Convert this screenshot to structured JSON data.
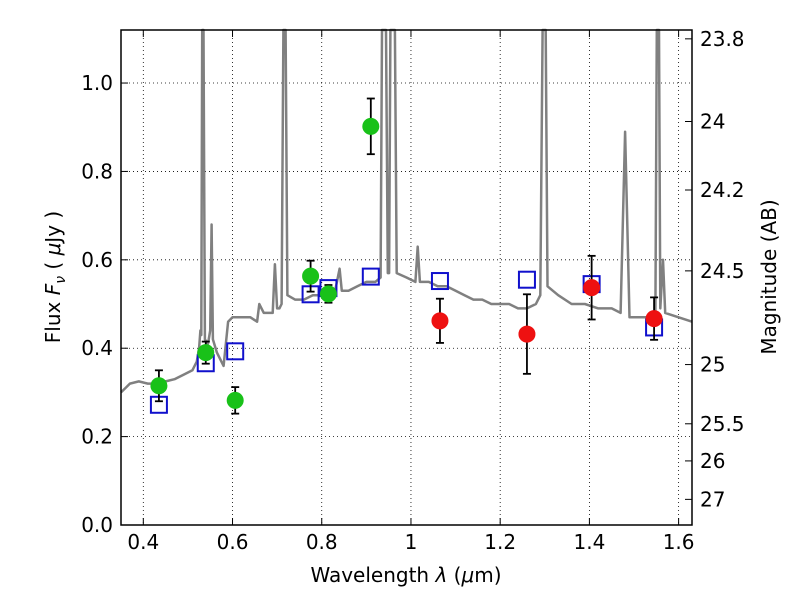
{
  "chart_data": {
    "type": "scatter",
    "xlabel_parts": [
      "Wavelength  ",
      "λ",
      " (",
      "μ",
      "m)"
    ],
    "ylabel_parts": [
      "Flux  ",
      "F",
      "ν",
      "  ( ",
      "μ",
      "Jy )"
    ],
    "right_ylabel": "Magnitude (AB)",
    "xlim": [
      0.35,
      1.63
    ],
    "ylim": [
      0.0,
      1.12
    ],
    "grid": true,
    "x_ticks": [
      {
        "value": 0.4,
        "label": "0.4"
      },
      {
        "value": 0.6,
        "label": "0.6"
      },
      {
        "value": 0.8,
        "label": "0.8"
      },
      {
        "value": 1.0,
        "label": "1"
      },
      {
        "value": 1.2,
        "label": "1.2"
      },
      {
        "value": 1.4,
        "label": "1.4"
      },
      {
        "value": 1.6,
        "label": "1.6"
      }
    ],
    "y_ticks": [
      {
        "value": 0.0,
        "label": "0.0"
      },
      {
        "value": 0.2,
        "label": "0.2"
      },
      {
        "value": 0.4,
        "label": "0.4"
      },
      {
        "value": 0.6,
        "label": "0.6"
      },
      {
        "value": 0.8,
        "label": "0.8"
      },
      {
        "value": 1.0,
        "label": "1.0"
      }
    ],
    "right_ticks": [
      {
        "flux": 1.1,
        "label": "23.8"
      },
      {
        "flux": 0.913,
        "label": "24"
      },
      {
        "flux": 0.758,
        "label": "24.2"
      },
      {
        "flux": 0.575,
        "label": "24.5"
      },
      {
        "flux": 0.363,
        "label": "25"
      },
      {
        "flux": 0.229,
        "label": "25.5"
      },
      {
        "flux": 0.145,
        "label": "26"
      },
      {
        "flux": 0.058,
        "label": "27"
      }
    ],
    "colors": {
      "spectrum": "#808080",
      "green": "#19c119",
      "red": "#ee1111",
      "model": "#1010cc",
      "error": "#000000"
    },
    "spectrum": [
      [
        0.35,
        0.3
      ],
      [
        0.36,
        0.31
      ],
      [
        0.37,
        0.32
      ],
      [
        0.39,
        0.325
      ],
      [
        0.41,
        0.32
      ],
      [
        0.43,
        0.32
      ],
      [
        0.45,
        0.325
      ],
      [
        0.47,
        0.33
      ],
      [
        0.49,
        0.34
      ],
      [
        0.51,
        0.35
      ],
      [
        0.52,
        0.37
      ],
      [
        0.525,
        0.4
      ],
      [
        0.528,
        0.44
      ],
      [
        0.53,
        0.43
      ],
      [
        0.532,
        1.12
      ],
      [
        0.535,
        1.12
      ],
      [
        0.538,
        0.42
      ],
      [
        0.545,
        0.41
      ],
      [
        0.55,
        0.44
      ],
      [
        0.553,
        0.68
      ],
      [
        0.556,
        0.42
      ],
      [
        0.565,
        0.39
      ],
      [
        0.58,
        0.36
      ],
      [
        0.59,
        0.46
      ],
      [
        0.6,
        0.47
      ],
      [
        0.62,
        0.47
      ],
      [
        0.64,
        0.47
      ],
      [
        0.655,
        0.46
      ],
      [
        0.66,
        0.5
      ],
      [
        0.665,
        0.49
      ],
      [
        0.67,
        0.48
      ],
      [
        0.69,
        0.48
      ],
      [
        0.695,
        0.59
      ],
      [
        0.7,
        0.49
      ],
      [
        0.705,
        0.49
      ],
      [
        0.71,
        0.5
      ],
      [
        0.714,
        1.12
      ],
      [
        0.719,
        1.12
      ],
      [
        0.723,
        0.52
      ],
      [
        0.74,
        0.51
      ],
      [
        0.76,
        0.51
      ],
      [
        0.78,
        0.52
      ],
      [
        0.8,
        0.52
      ],
      [
        0.83,
        0.53
      ],
      [
        0.84,
        0.58
      ],
      [
        0.845,
        0.53
      ],
      [
        0.86,
        0.53
      ],
      [
        0.88,
        0.54
      ],
      [
        0.9,
        0.55
      ],
      [
        0.92,
        0.55
      ],
      [
        0.932,
        0.56
      ],
      [
        0.935,
        1.12
      ],
      [
        0.944,
        1.12
      ],
      [
        0.948,
        0.57
      ],
      [
        0.951,
        0.57
      ],
      [
        0.954,
        1.12
      ],
      [
        0.964,
        1.12
      ],
      [
        0.968,
        0.57
      ],
      [
        0.99,
        0.56
      ],
      [
        1.01,
        0.55
      ],
      [
        1.015,
        0.63
      ],
      [
        1.02,
        0.55
      ],
      [
        1.04,
        0.55
      ],
      [
        1.06,
        0.54
      ],
      [
        1.08,
        0.54
      ],
      [
        1.1,
        0.53
      ],
      [
        1.12,
        0.52
      ],
      [
        1.14,
        0.51
      ],
      [
        1.16,
        0.51
      ],
      [
        1.18,
        0.5
      ],
      [
        1.2,
        0.5
      ],
      [
        1.22,
        0.5
      ],
      [
        1.24,
        0.49
      ],
      [
        1.26,
        0.49
      ],
      [
        1.28,
        0.5
      ],
      [
        1.29,
        0.52
      ],
      [
        1.295,
        1.12
      ],
      [
        1.302,
        1.12
      ],
      [
        1.306,
        0.54
      ],
      [
        1.33,
        0.52
      ],
      [
        1.36,
        0.5
      ],
      [
        1.39,
        0.5
      ],
      [
        1.42,
        0.49
      ],
      [
        1.45,
        0.49
      ],
      [
        1.47,
        0.48
      ],
      [
        1.48,
        0.89
      ],
      [
        1.49,
        0.47
      ],
      [
        1.51,
        0.47
      ],
      [
        1.53,
        0.47
      ],
      [
        1.548,
        0.48
      ],
      [
        1.551,
        1.12
      ],
      [
        1.556,
        1.12
      ],
      [
        1.559,
        0.49
      ],
      [
        1.565,
        0.6
      ],
      [
        1.57,
        0.48
      ],
      [
        1.6,
        0.47
      ],
      [
        1.63,
        0.46
      ]
    ],
    "green_points": [
      {
        "x": 0.435,
        "y": 0.315,
        "err": 0.035
      },
      {
        "x": 0.54,
        "y": 0.39,
        "err": 0.025
      },
      {
        "x": 0.606,
        "y": 0.282,
        "err": 0.03
      },
      {
        "x": 0.775,
        "y": 0.563,
        "err": 0.035
      },
      {
        "x": 0.815,
        "y": 0.523,
        "err": 0.02
      },
      {
        "x": 0.91,
        "y": 0.902,
        "err": 0.063
      }
    ],
    "red_points": [
      {
        "x": 1.065,
        "y": 0.462,
        "err": 0.05
      },
      {
        "x": 1.26,
        "y": 0.432,
        "err": 0.09
      },
      {
        "x": 1.405,
        "y": 0.537,
        "err": 0.072
      },
      {
        "x": 1.545,
        "y": 0.467,
        "err": 0.048
      }
    ],
    "model_points": [
      {
        "x": 0.435,
        "y": 0.272
      },
      {
        "x": 0.54,
        "y": 0.366
      },
      {
        "x": 0.606,
        "y": 0.393
      },
      {
        "x": 0.775,
        "y": 0.522
      },
      {
        "x": 0.815,
        "y": 0.536
      },
      {
        "x": 0.91,
        "y": 0.562
      },
      {
        "x": 1.065,
        "y": 0.552
      },
      {
        "x": 1.26,
        "y": 0.555
      },
      {
        "x": 1.405,
        "y": 0.545
      },
      {
        "x": 1.545,
        "y": 0.447
      }
    ]
  }
}
